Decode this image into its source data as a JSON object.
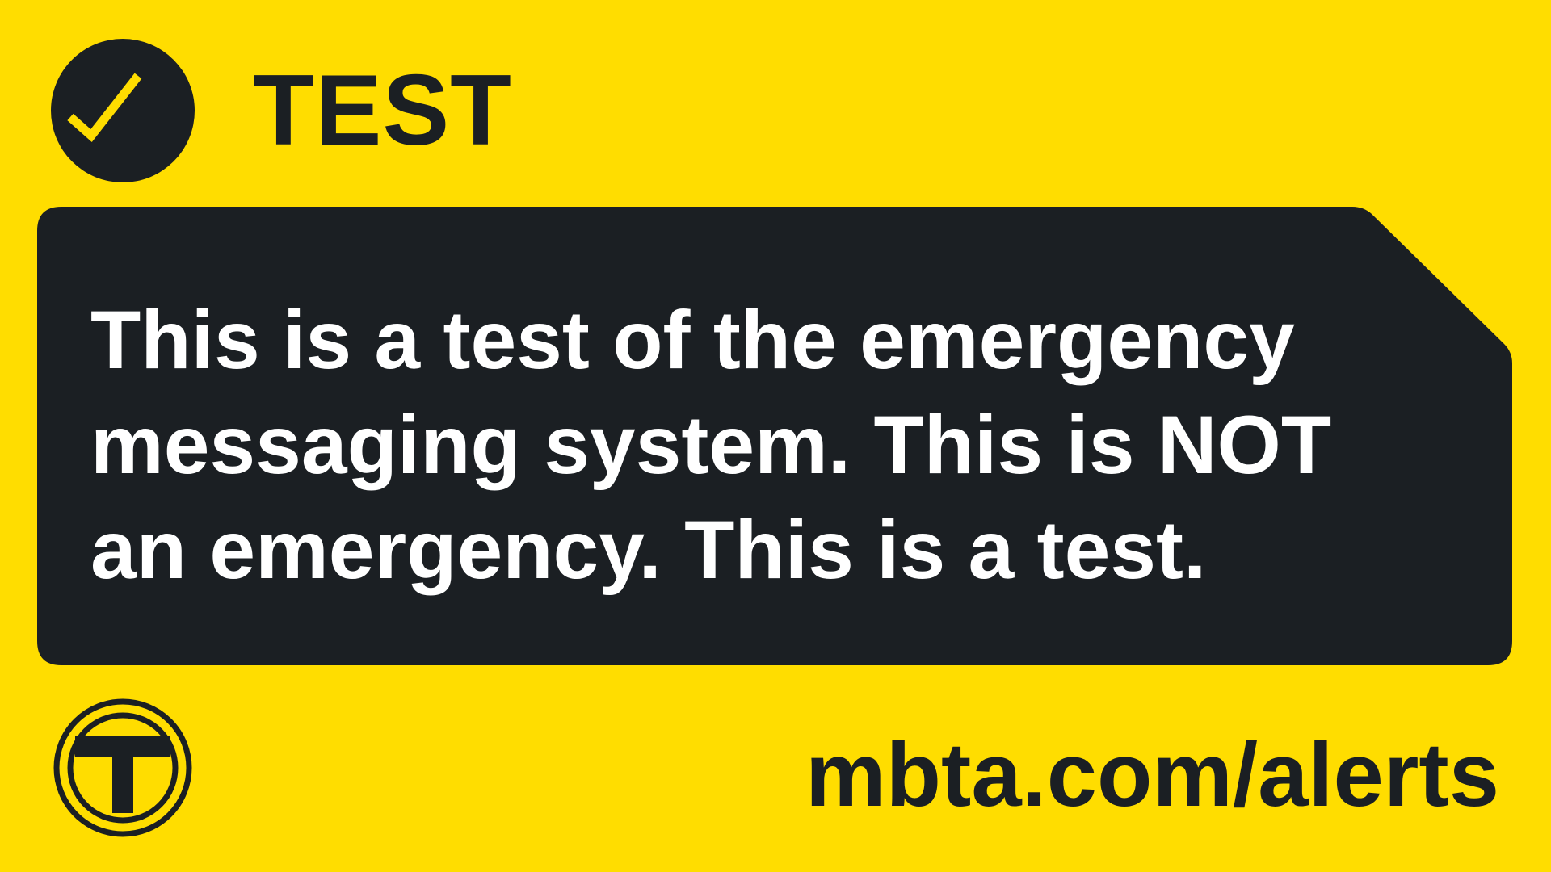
{
  "header": {
    "icon": "check-circle-icon",
    "title": "TEST"
  },
  "message": {
    "text": "This is a test of the emergency messaging system. This is NOT an emergency. This is a test."
  },
  "footer": {
    "logo": "mbta-t-logo",
    "url": "mbta.com/alerts"
  },
  "colors": {
    "background": "#FFDD00",
    "panel": "#1B1F23",
    "message_text": "#FFFFFF",
    "dark_text": "#1B1F23"
  }
}
